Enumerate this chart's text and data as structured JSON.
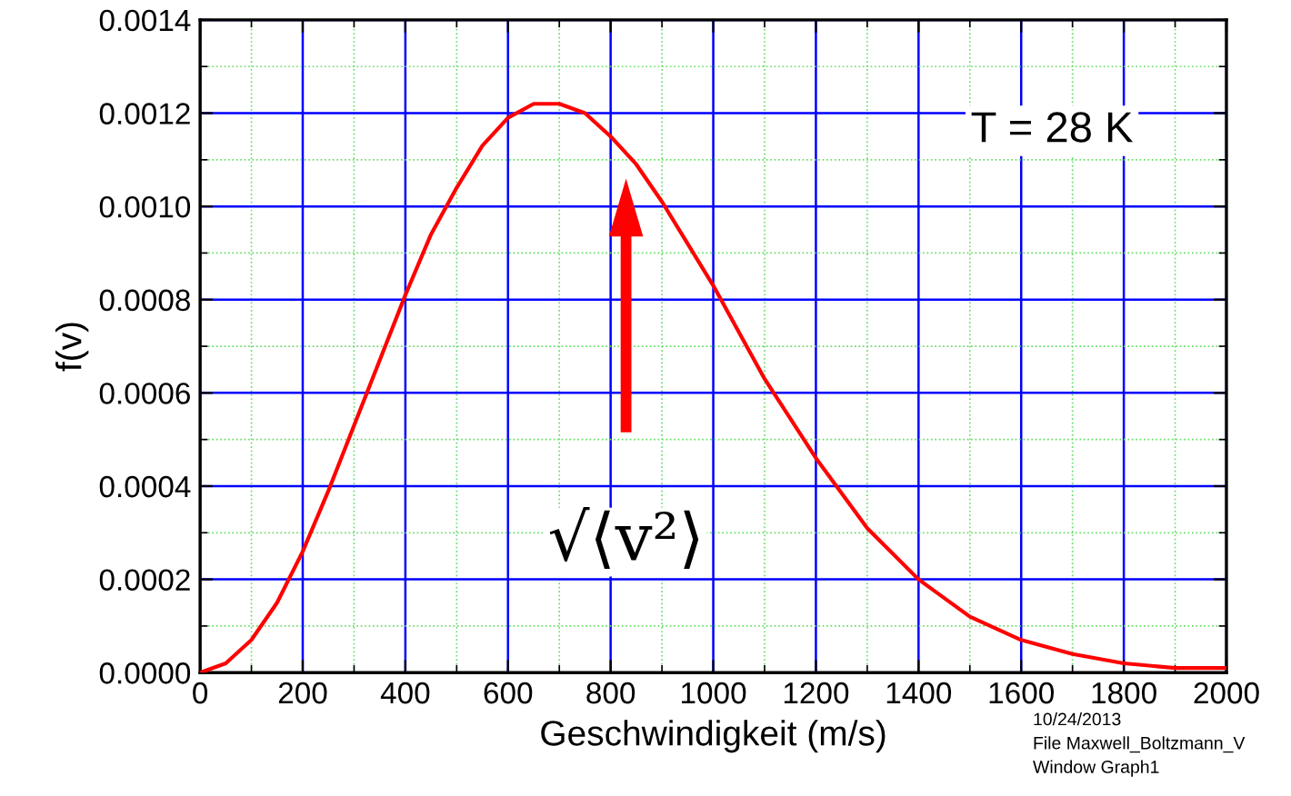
{
  "chart_data": {
    "type": "line",
    "xlabel": "Geschwindigkeit (m/s)",
    "ylabel": "f(v)",
    "x": [
      0,
      50,
      100,
      150,
      200,
      250,
      300,
      350,
      400,
      450,
      500,
      550,
      600,
      650,
      700,
      750,
      800,
      850,
      900,
      950,
      1000,
      1100,
      1200,
      1300,
      1400,
      1500,
      1600,
      1700,
      1800,
      1900,
      2000
    ],
    "series": [
      {
        "color": "#ff0000",
        "values": [
          0,
          2e-05,
          7e-05,
          0.00015,
          0.00026,
          0.00039,
          0.00053,
          0.00067,
          0.00081,
          0.00094,
          0.00104,
          0.00113,
          0.00119,
          0.00122,
          0.00122,
          0.0012,
          0.00115,
          0.00109,
          0.00101,
          0.00092,
          0.00083,
          0.00063,
          0.00046,
          0.00031,
          0.0002,
          0.00012,
          7e-05,
          4e-05,
          2e-05,
          1e-05,
          1e-05
        ]
      }
    ],
    "xlim": [
      0,
      2000
    ],
    "ylim": [
      0,
      0.0014
    ],
    "xticks": [
      0,
      {
        "value": 100,
        "label": null
      },
      200,
      {
        "value": 300,
        "label": null
      },
      400,
      {
        "value": 500,
        "label": null
      },
      600,
      {
        "value": 700,
        "label": null
      },
      800,
      {
        "value": 900,
        "label": null
      },
      1000,
      {
        "value": 1100,
        "label": null
      },
      1200,
      {
        "value": 1300,
        "label": null
      },
      1400,
      {
        "value": 1500,
        "label": null
      },
      1600,
      {
        "value": 1700,
        "label": null
      },
      1800,
      {
        "value": 1900,
        "label": null
      },
      2000
    ],
    "yticks": [
      {
        "value": 0,
        "label": "0.0000"
      },
      {
        "value": 0.0001,
        "label": null
      },
      {
        "value": 0.0002,
        "label": "0.0002"
      },
      {
        "value": 0.0003,
        "label": null
      },
      {
        "value": 0.0004,
        "label": "0.0004"
      },
      {
        "value": 0.0005,
        "label": null
      },
      {
        "value": 0.0006,
        "label": "0.0006"
      },
      {
        "value": 0.0007,
        "label": null
      },
      {
        "value": 0.0008,
        "label": "0.0008"
      },
      {
        "value": 0.0009,
        "label": null
      },
      {
        "value": 0.001,
        "label": "0.0010"
      },
      {
        "value": 0.0011,
        "label": null
      },
      {
        "value": 0.0012,
        "label": "0.0012"
      },
      {
        "value": 0.0013,
        "label": null
      },
      {
        "value": 0.0014,
        "label": "0.0014"
      }
    ],
    "grid": true,
    "legend": false,
    "marker": "none",
    "line_style": "solid",
    "annotations": [
      "T = 28 K",
      "√⟨v²⟩",
      "10/24/2013",
      "File Maxwell_Boltzmann_V",
      "Window Graph1"
    ]
  }
}
